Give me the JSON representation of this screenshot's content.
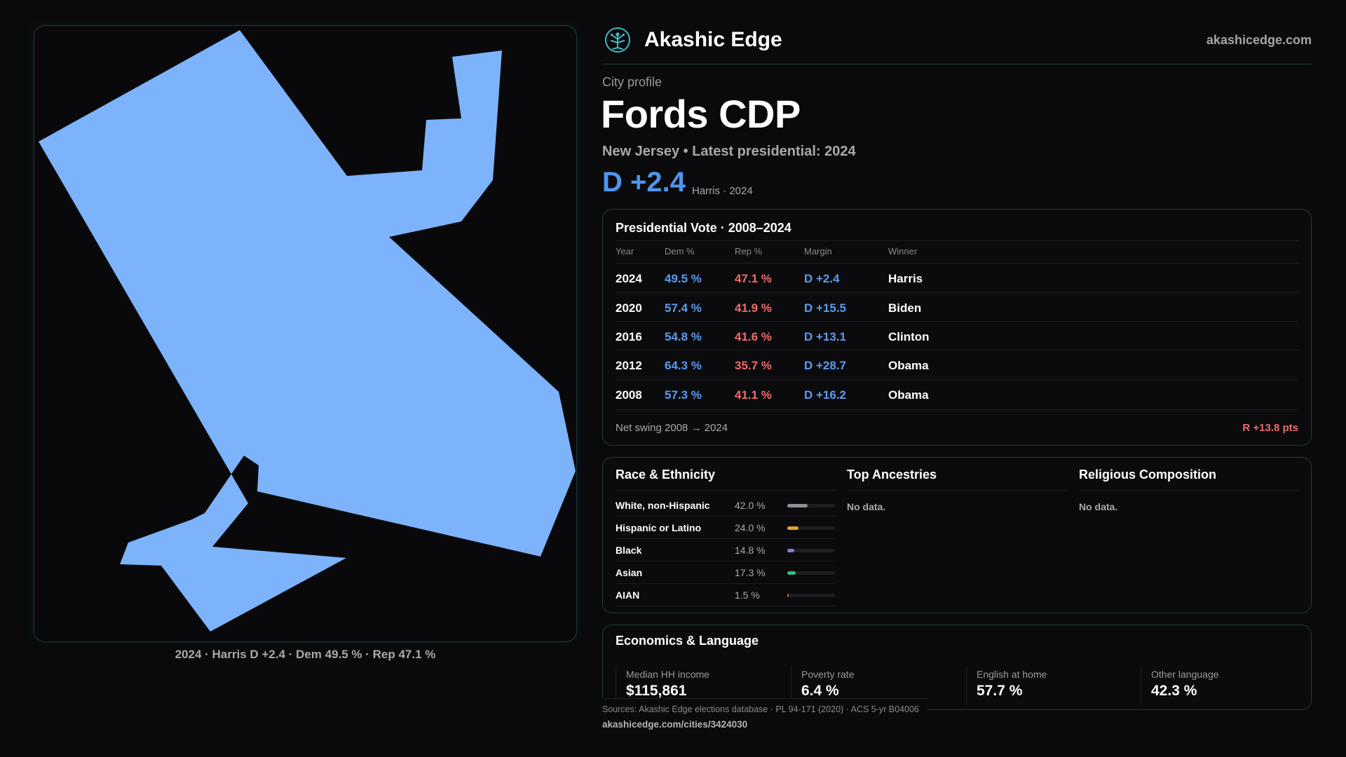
{
  "map": {
    "fill_color": "#7cb3fa",
    "caption": "2024 · Harris D +2.4 · Dem 49.5 % · Rep 47.1 %"
  },
  "brand": {
    "name": "Akashic Edge",
    "url": "akashicedge.com",
    "logo_icon": "tree-emblem-icon",
    "accent": "#3fb8c2"
  },
  "profile": {
    "kicker": "City profile",
    "title": "Fords CDP",
    "state_line": "New Jersey • Latest presidential: 2024",
    "margin": "D +2.4",
    "margin_sub": "Harris · 2024"
  },
  "vote": {
    "title": "Presidential Vote · 2008–2024",
    "headers": {
      "year": "Year",
      "dem": "Dem %",
      "rep": "Rep %",
      "margin": "Margin",
      "winner": "Winner"
    },
    "rows": [
      {
        "year": "2024",
        "dem": "49.5 %",
        "rep": "47.1 %",
        "margin": "D +2.4",
        "winner": "Harris"
      },
      {
        "year": "2020",
        "dem": "57.4 %",
        "rep": "41.9 %",
        "margin": "D +15.5",
        "winner": "Biden"
      },
      {
        "year": "2016",
        "dem": "54.8 %",
        "rep": "41.6 %",
        "margin": "D +13.1",
        "winner": "Clinton"
      },
      {
        "year": "2012",
        "dem": "64.3 %",
        "rep": "35.7 %",
        "margin": "D +28.7",
        "winner": "Obama"
      },
      {
        "year": "2008",
        "dem": "57.3 %",
        "rep": "41.1 %",
        "margin": "D +16.2",
        "winner": "Obama"
      }
    ],
    "swing_label": "Net swing 2008 → 2024",
    "swing_value": "R +13.8 pts"
  },
  "demographics": {
    "race": {
      "title": "Race & Ethnicity",
      "items": [
        {
          "name": "White, non-Hispanic",
          "pct": "42.0 %",
          "share": 0.42,
          "color": "#8c9299"
        },
        {
          "name": "Hispanic or Latino",
          "pct": "24.0 %",
          "share": 0.24,
          "color": "#e2a02c"
        },
        {
          "name": "Black",
          "pct": "14.8 %",
          "share": 0.148,
          "color": "#8e74e0"
        },
        {
          "name": "Asian",
          "pct": "17.3 %",
          "share": 0.173,
          "color": "#2fbf85"
        },
        {
          "name": "AIAN",
          "pct": "1.5 %",
          "share": 0.015,
          "color": "#c0622c"
        }
      ]
    },
    "ancestries": {
      "title": "Top Ancestries",
      "empty": "No data."
    },
    "religion": {
      "title": "Religious Composition",
      "empty": "No data."
    }
  },
  "economics": {
    "title": "Economics & Language",
    "cells": [
      {
        "label": "Median HH income",
        "value": "$115,861"
      },
      {
        "label": "Poverty rate",
        "value": "6.4 %"
      },
      {
        "label": "English at home",
        "value": "57.7 %"
      },
      {
        "label": "Other language",
        "value": "42.3 %"
      }
    ]
  },
  "footer": {
    "sources": "Sources: Akashic Edge elections database · PL 94-171 (2020) · ACS 5-yr B04006",
    "url": "akashicedge.com/cities/3424030"
  }
}
